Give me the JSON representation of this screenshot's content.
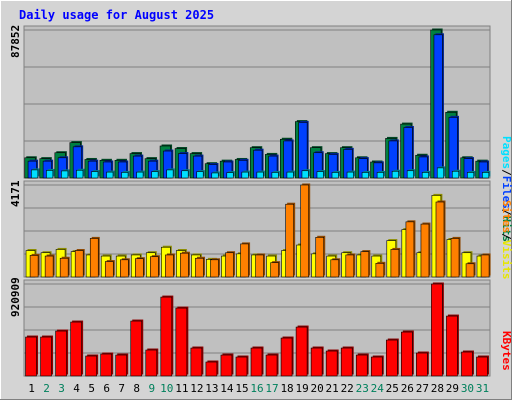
{
  "title": "Daily usage for August 2025",
  "colors": {
    "title": "#0000ff",
    "hits": "#008040",
    "files": "#0040ff",
    "pages": "#00e0ff",
    "visits": "#ffff00",
    "sites": "#ff8000",
    "kbytes": "#ff0000",
    "weekend_day": "#00805c",
    "plot_bg": "#c0c0c0",
    "frame_bg": "#d4d4d4"
  },
  "legend": {
    "top": {
      "pages": "Pages",
      "sep1": "/",
      "files": "Files",
      "sep2": "/",
      "hits": "Hits"
    },
    "middle": {
      "sites": "Sites",
      "sep": "/",
      "visits": "Visits"
    },
    "bottom": {
      "kbytes": "KBytes"
    }
  },
  "chart_data": {
    "type": "bar",
    "title": "Daily usage for August 2025",
    "categories": [
      "1",
      "2",
      "3",
      "4",
      "5",
      "6",
      "7",
      "8",
      "9",
      "10",
      "11",
      "12",
      "13",
      "14",
      "15",
      "16",
      "17",
      "18",
      "19",
      "20",
      "21",
      "22",
      "23",
      "24",
      "25",
      "26",
      "27",
      "28",
      "29",
      "30",
      "31"
    ],
    "weekend_days": [
      "2",
      "3",
      "9",
      "10",
      "16",
      "17",
      "23",
      "24",
      "30",
      "31"
    ],
    "panels": [
      {
        "name": "Pages / Files / Hits",
        "max_label": "87852",
        "ylim": [
          0,
          87852
        ],
        "series": [
          {
            "name": "Hits",
            "color": "#008040",
            "values": [
              12000,
              11500,
              15000,
              21000,
              11000,
              10500,
              10500,
              14500,
              11500,
              19000,
              17500,
              14500,
              8500,
              10000,
              11000,
              18000,
              14000,
              23000,
              33500,
              18000,
              14500,
              18000,
              12000,
              9500,
              23500,
              32000,
              13500,
              87852,
              39000,
              12000,
              10000
            ]
          },
          {
            "name": "Files",
            "color": "#0040ff",
            "values": [
              10000,
              10000,
              12000,
              18500,
              10000,
              9500,
              9500,
              13000,
              10000,
              16000,
              14500,
              13000,
              8000,
              9500,
              10500,
              16500,
              13000,
              22000,
              33000,
              15000,
              14000,
              17000,
              11500,
              9000,
              22000,
              30000,
              12500,
              85000,
              36000,
              11500,
              9500
            ]
          },
          {
            "name": "Pages",
            "color": "#00e0ff",
            "values": [
              4800,
              4500,
              4200,
              4600,
              3800,
              3500,
              3300,
              3500,
              3800,
              4800,
              4300,
              3800,
              3000,
              3200,
              3500,
              3500,
              3300,
              3500,
              4300,
              3800,
              3300,
              3500,
              3300,
              3300,
              4000,
              4300,
              3300,
              6000,
              4000,
              3300,
              3300
            ]
          }
        ]
      },
      {
        "name": "Sites / Visits",
        "max_label": "4171",
        "ylim": [
          0,
          4171
        ],
        "series": [
          {
            "name": "Visits",
            "color": "#ffff00",
            "values": [
              1200,
              1100,
              1250,
              1150,
              1000,
              950,
              950,
              1000,
              1100,
              1350,
              1200,
              1000,
              800,
              950,
              1050,
              1000,
              950,
              1200,
              1450,
              1050,
              950,
              1100,
              1000,
              950,
              1650,
              2150,
              1100,
              3700,
              1700,
              1100,
              950
            ]
          },
          {
            "name": "Sites",
            "color": "#ff8000",
            "values": [
              980,
              950,
              850,
              1200,
              1750,
              700,
              780,
              830,
              920,
              1000,
              1080,
              850,
              780,
              1100,
              1500,
              1000,
              650,
              3300,
              4171,
              1800,
              780,
              1000,
              1150,
              620,
              1250,
              2500,
              2400,
              3400,
              1750,
              600,
              1000
            ]
          }
        ]
      },
      {
        "name": "KBytes",
        "max_label": "920909",
        "ylim": [
          0,
          920909
        ],
        "series": [
          {
            "name": "KBytes",
            "color": "#ff0000",
            "values": [
              390000,
              390000,
              450000,
              540000,
              200000,
              220000,
              210000,
              550000,
              260000,
              790000,
              680000,
              280000,
              140000,
              210000,
              190000,
              280000,
              210000,
              380000,
              490000,
              280000,
              250000,
              280000,
              210000,
              190000,
              360000,
              440000,
              230000,
              920909,
              600000,
              240000,
              190000
            ]
          }
        ]
      }
    ]
  }
}
